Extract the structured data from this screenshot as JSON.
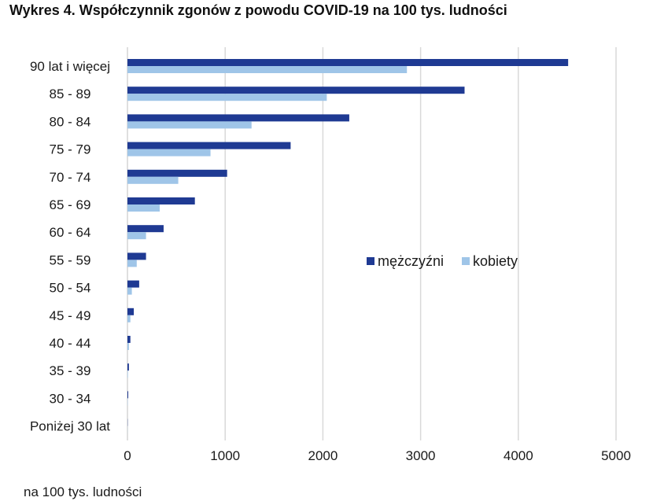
{
  "title": "Wykres 4. Współczynnik zgonów z powodu COVID-19 na 100 tys. ludności",
  "colors": {
    "men": "#1f3a93",
    "women": "#9fc5e8",
    "grid": "#d9d9d9"
  },
  "chart_data": {
    "type": "bar",
    "orientation": "horizontal",
    "title": "Wykres 4. Współczynnik zgonów z powodu COVID-19 na 100 tys. ludności",
    "xlabel": "na 100 tys. ludności",
    "ylabel": "",
    "xlim": [
      0,
      5000
    ],
    "xticks": [
      0,
      1000,
      2000,
      3000,
      4000,
      5000
    ],
    "grid": true,
    "legend_position": "right",
    "categories": [
      "90 lat i więcej",
      "85 - 89",
      "80 - 84",
      "75 - 79",
      "70 - 74",
      "65 - 69",
      "60 - 64",
      "55 - 59",
      "50 - 54",
      "45 - 49",
      "40 - 44",
      "35 - 39",
      "30 - 34",
      "Poniżej 30 lat"
    ],
    "series": [
      {
        "name": "mężczyźni",
        "values": [
          4510,
          3450,
          2270,
          1670,
          1020,
          690,
          370,
          190,
          120,
          65,
          30,
          15,
          8,
          2
        ]
      },
      {
        "name": "kobiety",
        "values": [
          2860,
          2040,
          1270,
          850,
          520,
          330,
          190,
          95,
          45,
          30,
          15,
          5,
          3,
          1
        ]
      }
    ]
  }
}
